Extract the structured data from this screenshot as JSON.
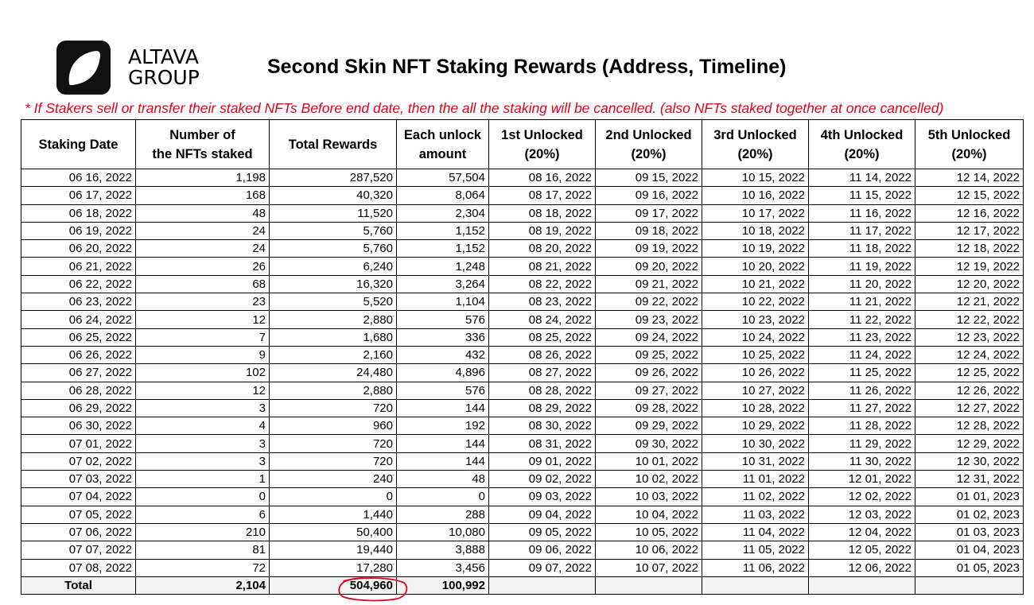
{
  "logo": {
    "line1": "ALTAVA",
    "line2": "GROUP"
  },
  "title": "Second Skin NFT Staking Rewards (Address, Timeline)",
  "notice": "* If Stakers sell or transfer their staked NFTs Before end date, then the all the staking will be cancelled. (also NFTs staked together at once cancelled)",
  "headers": [
    [
      "Staking Date"
    ],
    [
      "Number of",
      "the NFTs staked"
    ],
    [
      "Total Rewards"
    ],
    [
      "Each unlock",
      "amount"
    ],
    [
      "1st Unlocked",
      "(20%)"
    ],
    [
      "2nd Unlocked",
      "(20%)"
    ],
    [
      "3rd Unlocked",
      "(20%)"
    ],
    [
      "4th Unlocked",
      "(20%)"
    ],
    [
      "5th Unlocked",
      "(20%)"
    ]
  ],
  "rows": [
    [
      "06 16, 2022",
      "1,198",
      "287,520",
      "57,504",
      "08 16, 2022",
      "09 15, 2022",
      "10 15, 2022",
      "11 14, 2022",
      "12 14, 2022"
    ],
    [
      "06 17, 2022",
      "168",
      "40,320",
      "8,064",
      "08 17, 2022",
      "09 16, 2022",
      "10 16, 2022",
      "11 15, 2022",
      "12 15, 2022"
    ],
    [
      "06 18, 2022",
      "48",
      "11,520",
      "2,304",
      "08 18, 2022",
      "09 17, 2022",
      "10 17, 2022",
      "11 16, 2022",
      "12 16, 2022"
    ],
    [
      "06 19, 2022",
      "24",
      "5,760",
      "1,152",
      "08 19, 2022",
      "09 18, 2022",
      "10 18, 2022",
      "11 17, 2022",
      "12 17, 2022"
    ],
    [
      "06 20, 2022",
      "24",
      "5,760",
      "1,152",
      "08 20, 2022",
      "09 19, 2022",
      "10 19, 2022",
      "11 18, 2022",
      "12 18, 2022"
    ],
    [
      "06 21, 2022",
      "26",
      "6,240",
      "1,248",
      "08 21, 2022",
      "09 20, 2022",
      "10 20, 2022",
      "11 19, 2022",
      "12 19, 2022"
    ],
    [
      "06 22, 2022",
      "68",
      "16,320",
      "3,264",
      "08 22, 2022",
      "09 21, 2022",
      "10 21, 2022",
      "11 20, 2022",
      "12 20, 2022"
    ],
    [
      "06 23, 2022",
      "23",
      "5,520",
      "1,104",
      "08 23, 2022",
      "09 22, 2022",
      "10 22, 2022",
      "11 21, 2022",
      "12 21, 2022"
    ],
    [
      "06 24, 2022",
      "12",
      "2,880",
      "576",
      "08 24, 2022",
      "09 23, 2022",
      "10 23, 2022",
      "11 22, 2022",
      "12 22, 2022"
    ],
    [
      "06 25, 2022",
      "7",
      "1,680",
      "336",
      "08 25, 2022",
      "09 24, 2022",
      "10 24, 2022",
      "11 23, 2022",
      "12 23, 2022"
    ],
    [
      "06 26, 2022",
      "9",
      "2,160",
      "432",
      "08 26, 2022",
      "09 25, 2022",
      "10 25, 2022",
      "11 24, 2022",
      "12 24, 2022"
    ],
    [
      "06 27, 2022",
      "102",
      "24,480",
      "4,896",
      "08 27, 2022",
      "09 26, 2022",
      "10 26, 2022",
      "11 25, 2022",
      "12 25, 2022"
    ],
    [
      "06 28, 2022",
      "12",
      "2,880",
      "576",
      "08 28, 2022",
      "09 27, 2022",
      "10 27, 2022",
      "11 26, 2022",
      "12 26, 2022"
    ],
    [
      "06 29, 2022",
      "3",
      "720",
      "144",
      "08 29, 2022",
      "09 28, 2022",
      "10 28, 2022",
      "11 27, 2022",
      "12 27, 2022"
    ],
    [
      "06 30, 2022",
      "4",
      "960",
      "192",
      "08 30, 2022",
      "09 29, 2022",
      "10 29, 2022",
      "11 28, 2022",
      "12 28, 2022"
    ],
    [
      "07 01, 2022",
      "3",
      "720",
      "144",
      "08 31, 2022",
      "09 30, 2022",
      "10 30, 2022",
      "11 29, 2022",
      "12 29, 2022"
    ],
    [
      "07 02, 2022",
      "3",
      "720",
      "144",
      "09 01, 2022",
      "10 01, 2022",
      "10 31, 2022",
      "11 30, 2022",
      "12 30, 2022"
    ],
    [
      "07 03, 2022",
      "1",
      "240",
      "48",
      "09 02, 2022",
      "10 02, 2022",
      "11 01, 2022",
      "12 01, 2022",
      "12 31, 2022"
    ],
    [
      "07 04, 2022",
      "0",
      "0",
      "0",
      "09 03, 2022",
      "10 03, 2022",
      "11 02, 2022",
      "12 02, 2022",
      "01 01, 2023"
    ],
    [
      "07 05, 2022",
      "6",
      "1,440",
      "288",
      "09 04, 2022",
      "10 04, 2022",
      "11 03, 2022",
      "12 03, 2022",
      "01 02, 2023"
    ],
    [
      "07 06, 2022",
      "210",
      "50,400",
      "10,080",
      "09 05, 2022",
      "10 05, 2022",
      "11 04, 2022",
      "12 04, 2022",
      "01 03, 2023"
    ],
    [
      "07 07, 2022",
      "81",
      "19,440",
      "3,888",
      "09 06, 2022",
      "10 06, 2022",
      "11 05, 2022",
      "12 05, 2022",
      "01 04, 2023"
    ],
    [
      "07 08, 2022",
      "72",
      "17,280",
      "3,456",
      "09 07, 2022",
      "10 07, 2022",
      "11 06, 2022",
      "12 06, 2022",
      "01 05, 2023"
    ]
  ],
  "total": [
    "Total",
    "2,104",
    "504,960",
    "100,992",
    "",
    "",
    "",
    "",
    ""
  ],
  "colors": {
    "notice": "#e4001b",
    "highlight_circle": "#e4001b",
    "total_row_bg": "#f2f2f2"
  }
}
